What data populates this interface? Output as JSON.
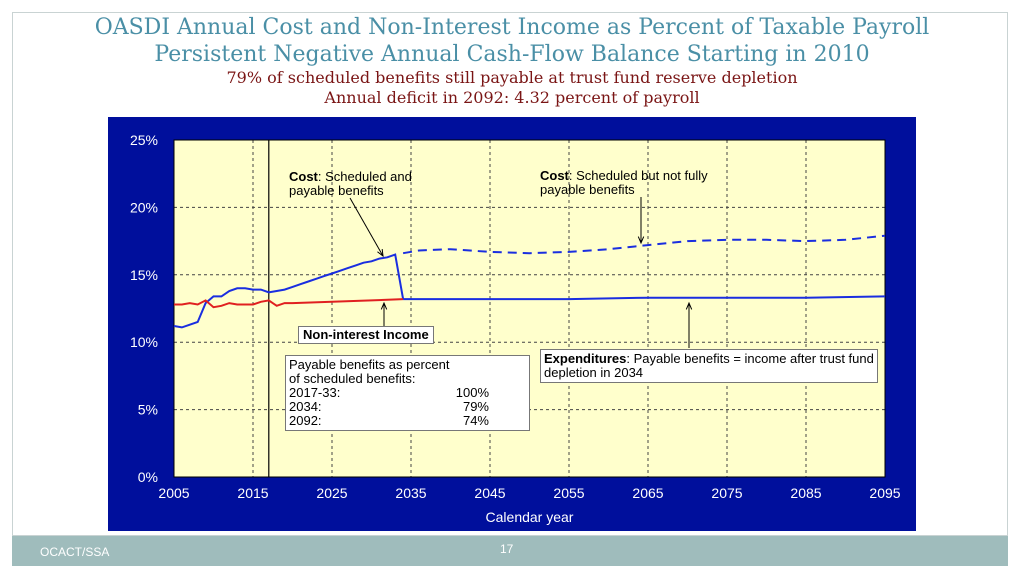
{
  "title": "OASDI Annual Cost and Non-Interest Income as Percent of Taxable Payroll",
  "subtitle": "Persistent Negative Annual Cash-Flow Balance Starting in 2010",
  "subtitle2": "79% of scheduled benefits still payable at trust fund reserve depletion",
  "subtitle3": "Annual deficit in 2092: 4.32 percent of payroll",
  "footer": {
    "org": "OCACT/SSA",
    "page": "17"
  },
  "colors": {
    "chart_bg": "#000f9c",
    "plot_bg": "#ffffcc",
    "cost": "#1a2ee0",
    "income": "#e02020"
  },
  "annotations": {
    "cost_payable_bold": "Cost",
    "cost_payable_rest": ": Scheduled and payable benefits",
    "cost_unpayable_bold": "Cost",
    "cost_unpayable_rest": ": Scheduled but not fully payable benefits",
    "income_label": "Non-interest Income",
    "expenditures_bold": "Expenditures",
    "expenditures_rest": ": Payable benefits = income after trust fund depletion in 2034",
    "payable_title_1": "Payable benefits as percent",
    "payable_title_2": "of scheduled benefits:",
    "payable_rows": [
      {
        "period": "2017-33:",
        "value": "100%"
      },
      {
        "period": "2034:",
        "value": "79%"
      },
      {
        "period": "2092:",
        "value": "74%"
      }
    ]
  },
  "chart_data": {
    "type": "line",
    "xlabel": "Calendar year",
    "ylabel": "",
    "xlim": [
      2005,
      2095
    ],
    "ylim": [
      0,
      25
    ],
    "x_ticks": [
      "2005",
      "2015",
      "2025",
      "2035",
      "2045",
      "2055",
      "2065",
      "2075",
      "2085",
      "2095"
    ],
    "y_ticks": [
      "0%",
      "5%",
      "10%",
      "15%",
      "20%",
      "25%"
    ],
    "grid": true,
    "vertical_marker_year": 2017,
    "series": [
      {
        "name": "Cost: Scheduled and payable benefits",
        "style": "solid",
        "color": "#1a2ee0",
        "points": [
          [
            2005,
            11.2
          ],
          [
            2006,
            11.1
          ],
          [
            2007,
            11.3
          ],
          [
            2008,
            11.5
          ],
          [
            2009,
            12.9
          ],
          [
            2010,
            13.4
          ],
          [
            2011,
            13.4
          ],
          [
            2012,
            13.8
          ],
          [
            2013,
            14.0
          ],
          [
            2014,
            14.0
          ],
          [
            2015,
            13.9
          ],
          [
            2016,
            13.9
          ],
          [
            2017,
            13.7
          ],
          [
            2018,
            13.8
          ],
          [
            2019,
            13.9
          ],
          [
            2020,
            14.1
          ],
          [
            2021,
            14.3
          ],
          [
            2022,
            14.5
          ],
          [
            2023,
            14.7
          ],
          [
            2024,
            14.9
          ],
          [
            2025,
            15.1
          ],
          [
            2026,
            15.3
          ],
          [
            2027,
            15.5
          ],
          [
            2028,
            15.7
          ],
          [
            2029,
            15.9
          ],
          [
            2030,
            16.0
          ],
          [
            2031,
            16.2
          ],
          [
            2032,
            16.3
          ],
          [
            2033,
            16.5
          ],
          [
            2034,
            13.2
          ]
        ]
      },
      {
        "name": "Cost: Scheduled but not fully payable benefits",
        "style": "dashed",
        "color": "#1a2ee0",
        "points": [
          [
            2034,
            16.6
          ],
          [
            2036,
            16.8
          ],
          [
            2040,
            16.9
          ],
          [
            2045,
            16.7
          ],
          [
            2050,
            16.6
          ],
          [
            2055,
            16.7
          ],
          [
            2060,
            16.9
          ],
          [
            2065,
            17.2
          ],
          [
            2070,
            17.5
          ],
          [
            2075,
            17.6
          ],
          [
            2080,
            17.6
          ],
          [
            2085,
            17.5
          ],
          [
            2090,
            17.6
          ],
          [
            2095,
            17.9
          ]
        ]
      },
      {
        "name": "Expenditures: Payable benefits = income after trust fund depletion in 2034",
        "style": "solid",
        "color": "#1a2ee0",
        "points": [
          [
            2034,
            13.2
          ],
          [
            2045,
            13.2
          ],
          [
            2055,
            13.2
          ],
          [
            2065,
            13.3
          ],
          [
            2075,
            13.3
          ],
          [
            2085,
            13.3
          ],
          [
            2095,
            13.4
          ]
        ]
      },
      {
        "name": "Non-interest Income",
        "style": "solid",
        "color": "#e02020",
        "points": [
          [
            2005,
            12.8
          ],
          [
            2006,
            12.8
          ],
          [
            2007,
            12.9
          ],
          [
            2008,
            12.8
          ],
          [
            2009,
            13.1
          ],
          [
            2010,
            12.6
          ],
          [
            2011,
            12.7
          ],
          [
            2012,
            12.9
          ],
          [
            2013,
            12.8
          ],
          [
            2014,
            12.8
          ],
          [
            2015,
            12.8
          ],
          [
            2016,
            13.0
          ],
          [
            2017,
            13.1
          ],
          [
            2018,
            12.7
          ],
          [
            2019,
            12.9
          ],
          [
            2020,
            12.9
          ],
          [
            2025,
            13.0
          ],
          [
            2030,
            13.1
          ],
          [
            2034,
            13.2
          ]
        ]
      }
    ]
  }
}
